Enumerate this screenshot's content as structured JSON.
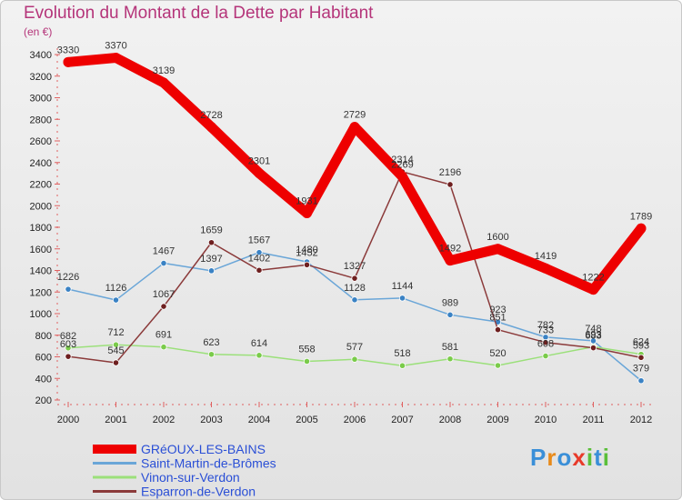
{
  "title": "Evolution du Montant de la Dette par Habitant",
  "unit": "(en €)",
  "logo": [
    "P",
    "r",
    "o",
    "x",
    "i",
    "t",
    "i"
  ],
  "chart_data": {
    "type": "line",
    "title": "Evolution du Montant de la Dette par Habitant",
    "ylabel": "(en €)",
    "xlabel": "",
    "x": [
      "2000",
      "2001",
      "2002",
      "2003",
      "2004",
      "2005",
      "2006",
      "2007",
      "2008",
      "2009",
      "2010",
      "2011",
      "2012"
    ],
    "ylim": [
      200,
      3400
    ],
    "yticks": [
      200,
      400,
      600,
      800,
      1000,
      1200,
      1400,
      1600,
      1800,
      2000,
      2200,
      2400,
      2600,
      2800,
      3000,
      3200,
      3400
    ],
    "grid": false,
    "legend": "bottom-left",
    "series": [
      {
        "name": "GRéOUX-LES-BAINS",
        "color": "#ee0000",
        "marker": "#ee0000",
        "values": [
          3330,
          3370,
          3139,
          2728,
          2301,
          1931,
          2729,
          2269,
          1492,
          1600,
          1419,
          1222,
          1789
        ]
      },
      {
        "name": "Saint-Martin-de-Brômes",
        "color": "#6aa6d8",
        "marker": "#3a82c4",
        "values": [
          1226,
          1126,
          1467,
          1397,
          1567,
          1480,
          1128,
          1144,
          989,
          923,
          782,
          748,
          379
        ]
      },
      {
        "name": "Vinon-sur-Verdon",
        "color": "#9be07a",
        "marker": "#7acb4a",
        "values": [
          682,
          712,
          691,
          623,
          614,
          558,
          577,
          518,
          581,
          520,
          608,
          693,
          624
        ]
      },
      {
        "name": "Esparron-de-Verdon",
        "color": "#8b3a3a",
        "marker": "#6e1f1f",
        "values": [
          603,
          545,
          1067,
          1659,
          1402,
          1452,
          1327,
          2314,
          2196,
          851,
          733,
          683,
          593
        ]
      }
    ]
  }
}
